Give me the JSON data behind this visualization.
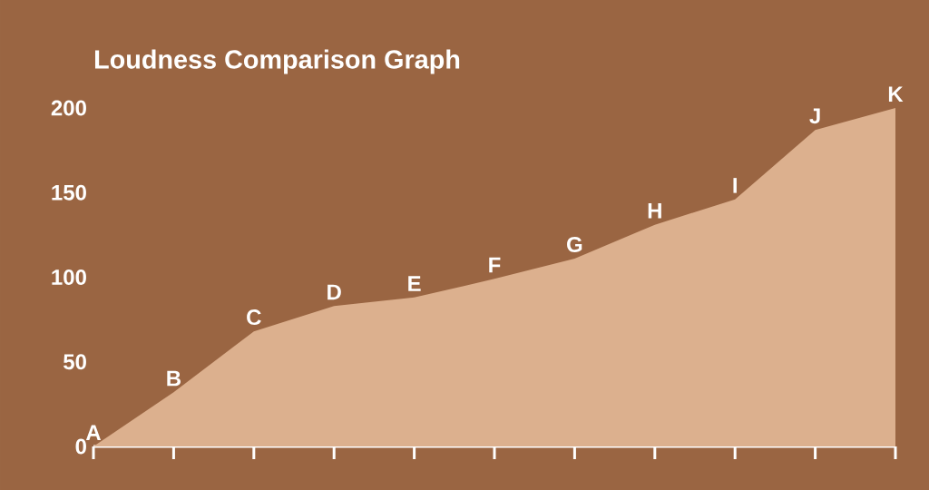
{
  "chart_data": {
    "type": "area",
    "title": "Loudness Comparison Graph",
    "categories": [
      "A",
      "B",
      "C",
      "D",
      "E",
      "F",
      "G",
      "H",
      "I",
      "J",
      "K"
    ],
    "values": [
      0,
      32,
      68,
      83,
      88,
      99,
      111,
      131,
      146,
      187,
      200
    ],
    "color": "#dcb08e",
    "ylim": [
      0,
      200
    ],
    "yticks": [
      0,
      50,
      100,
      150,
      200
    ]
  }
}
